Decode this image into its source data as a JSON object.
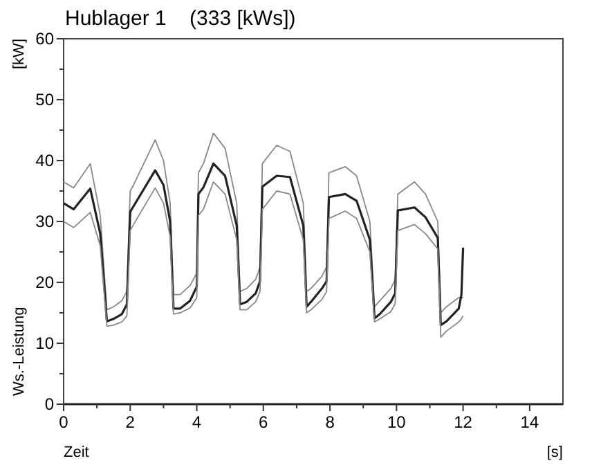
{
  "chart_data": {
    "type": "line",
    "title": "Hublager 1    (333 [kWs])",
    "xlabel": "Zeit",
    "ylabel": "Ws.-Leistung",
    "annotations": [
      "[kW]",
      "[s]"
    ],
    "x": [
      0,
      0.3,
      0.8,
      1.1,
      1.3,
      1.5,
      1.75,
      1.9,
      2.0,
      2.1,
      2.75,
      3.0,
      3.2,
      3.3,
      3.5,
      3.8,
      4.0,
      4.05,
      4.2,
      4.5,
      4.85,
      5.2,
      5.3,
      5.5,
      5.77,
      5.9,
      5.97,
      6.4,
      6.8,
      7.2,
      7.3,
      7.43,
      7.76,
      7.9,
      7.97,
      8.46,
      8.8,
      9.2,
      9.34,
      9.5,
      9.83,
      9.96,
      10.04,
      10.54,
      10.87,
      11.24,
      11.33,
      11.5,
      11.87,
      11.95,
      12.0
    ],
    "series": [
      {
        "color": "#888888",
        "values": [
          36.5,
          35.5,
          39.5,
          31,
          15.5,
          16,
          17,
          18.5,
          35,
          36,
          43.4,
          40,
          33,
          18,
          18,
          19.5,
          21.5,
          38,
          39.5,
          44.5,
          42,
          33,
          18.5,
          19,
          20.5,
          22.5,
          39.5,
          42.5,
          41.5,
          33,
          18.5,
          19,
          21,
          22.5,
          38,
          39,
          37.5,
          30,
          16,
          17,
          19,
          20.5,
          34.5,
          36.5,
          34.5,
          30,
          15,
          16,
          17.5,
          17.5,
          17.5
        ]
      },
      {
        "color": "#222222",
        "values": [
          33,
          32,
          35.4,
          28,
          13.6,
          14,
          14.8,
          16.4,
          31.6,
          32.5,
          38.4,
          36,
          30,
          15.7,
          15.7,
          17,
          19.3,
          34.5,
          35.6,
          39.5,
          37.5,
          29.3,
          16.4,
          16.8,
          18.2,
          20.2,
          35.7,
          37.5,
          37.3,
          29.3,
          16,
          16.8,
          19,
          20.2,
          34,
          34.5,
          33.4,
          27,
          14.1,
          14.8,
          16.8,
          18.2,
          31.8,
          32.3,
          30.7,
          27.3,
          13,
          13.6,
          15.7,
          18,
          25.7
        ]
      },
      {
        "color": "#888888",
        "values": [
          30,
          29,
          31.5,
          26,
          12.8,
          13,
          13.5,
          14.5,
          28.5,
          29.5,
          35.5,
          33,
          27.5,
          14.8,
          15,
          15.8,
          17.5,
          31,
          32,
          36.5,
          34.5,
          27,
          15.5,
          15.5,
          16.8,
          18.5,
          32,
          35,
          34.5,
          27,
          15,
          15.5,
          17.2,
          18.5,
          30.5,
          31.7,
          30.5,
          25,
          13.5,
          14,
          15.2,
          16.5,
          28.5,
          29.5,
          28,
          25.5,
          11,
          12,
          13.5,
          14,
          14.5
        ]
      }
    ],
    "xlim": [
      0,
      15
    ],
    "xticks": [
      0,
      {
        "value": 1,
        "label": null
      },
      2,
      {
        "value": 3,
        "label": null
      },
      4,
      {
        "value": 5,
        "label": null
      },
      6,
      {
        "value": 7,
        "label": null
      },
      8,
      {
        "value": 9,
        "label": null
      },
      10,
      {
        "value": 11,
        "label": null
      },
      12,
      {
        "value": 13,
        "label": null
      },
      14
    ],
    "ylim": [
      0,
      60
    ],
    "yticks": [
      0,
      {
        "value": 5,
        "label": null
      },
      10,
      {
        "value": 15,
        "label": null
      },
      20,
      {
        "value": 25,
        "label": null
      },
      30,
      {
        "value": 35,
        "label": null
      },
      40,
      {
        "value": 45,
        "label": null
      },
      50,
      {
        "value": 55,
        "label": null
      },
      60
    ],
    "grid": false,
    "marker": "none",
    "line_style": "solid"
  }
}
